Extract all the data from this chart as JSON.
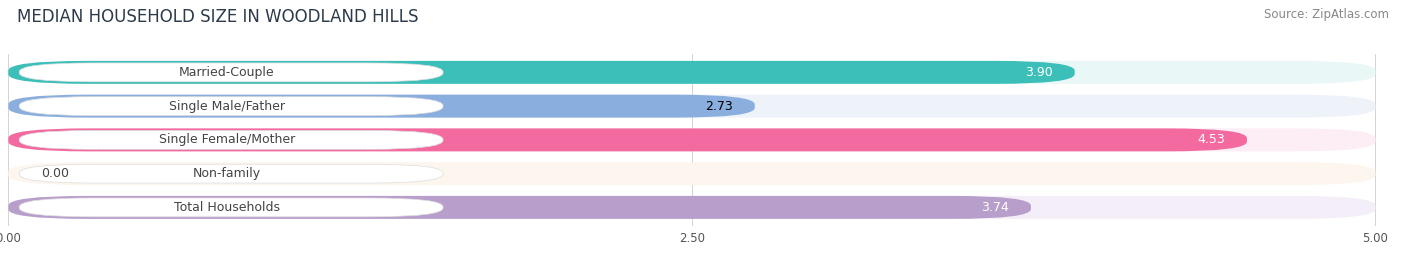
{
  "title": "MEDIAN HOUSEHOLD SIZE IN WOODLAND HILLS",
  "source": "Source: ZipAtlas.com",
  "categories": [
    "Married-Couple",
    "Single Male/Father",
    "Single Female/Mother",
    "Non-family",
    "Total Households"
  ],
  "values": [
    3.9,
    2.73,
    4.53,
    0.0,
    3.74
  ],
  "bar_colors": [
    "#3bbfb8",
    "#8aaedd",
    "#f26aa0",
    "#f5c98a",
    "#b89ecb"
  ],
  "bar_bg_colors": [
    "#eaf7f7",
    "#eef2f9",
    "#fdeef5",
    "#fdf6ee",
    "#f3eef8"
  ],
  "xlim": [
    0,
    5.0
  ],
  "xticks": [
    0.0,
    2.5,
    5.0
  ],
  "value_label_colors": [
    "white",
    "black",
    "white",
    "black",
    "white"
  ],
  "title_fontsize": 12,
  "source_fontsize": 8.5,
  "label_fontsize": 9,
  "value_fontsize": 9
}
